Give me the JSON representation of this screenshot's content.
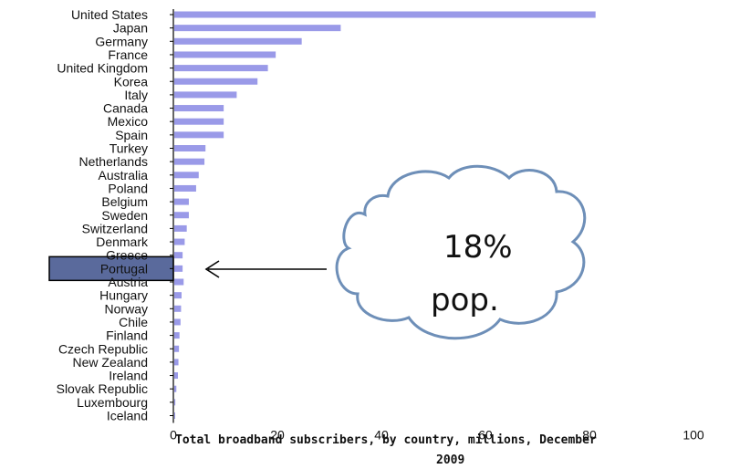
{
  "chart_data": {
    "type": "bar",
    "orientation": "horizontal",
    "categories": [
      "United States",
      "Japan",
      "Germany",
      "France",
      "United Kingdom",
      "Korea",
      "Italy",
      "Canada",
      "Mexico",
      "Spain",
      "Turkey",
      "Netherlands",
      "Australia",
      "Poland",
      "Belgium",
      "Sweden",
      "Switzerland",
      "Denmark",
      "Greece",
      "Portugal",
      "Austria",
      "Hungary",
      "Norway",
      "Chile",
      "Finland",
      "Czech Republic",
      "New Zealand",
      "Ireland",
      "Slovak Republic",
      "Luxembourg",
      "Iceland"
    ],
    "values": [
      81,
      32,
      24.5,
      19.5,
      18,
      16,
      12,
      9.5,
      9.5,
      9.5,
      6,
      5.8,
      4.7,
      4.2,
      2.8,
      2.8,
      2.4,
      2,
      1.6,
      1.6,
      1.8,
      1.4,
      1.3,
      1.2,
      1,
      0.9,
      0.8,
      0.7,
      0.4,
      0.2,
      0.1
    ],
    "xlim": [
      0,
      100
    ],
    "xticks": [
      "0",
      "20",
      "40",
      "60",
      "80",
      "100"
    ],
    "xlabel": "Total broadband subscribers, by country, millions, December",
    "xlabel_line2": "2009",
    "bar_color": "#9a9ae8",
    "highlight": {
      "category": "Portugal",
      "color": "#5a6a9c"
    },
    "callout": {
      "line1": "18%",
      "line2": "pop."
    }
  }
}
